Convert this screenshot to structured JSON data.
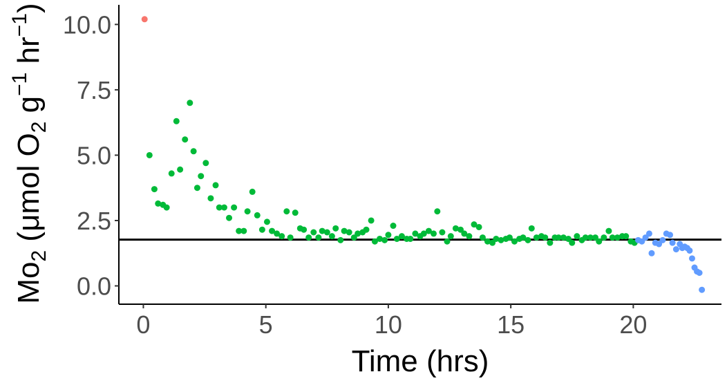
{
  "chart_data": {
    "type": "scatter",
    "xlabel": "Time (hrs)",
    "ylabel": {
      "parts": [
        "Mo",
        "2",
        " (μmol O",
        "2",
        " g",
        "−1",
        " hr",
        "−1",
        ")"
      ]
    },
    "xlim": [
      -1,
      23.6
    ],
    "ylim": [
      -0.7,
      10.75
    ],
    "x_ticks": [
      0,
      5,
      10,
      15,
      20
    ],
    "x_tick_labels": [
      "0",
      "5",
      "10",
      "15",
      "20"
    ],
    "y_ticks": [
      0,
      2.5,
      5,
      7.5,
      10
    ],
    "y_tick_labels": [
      "0.0",
      "2.5",
      "5.0",
      "7.5",
      "10.0"
    ],
    "grid": false,
    "legend": "none",
    "hline": {
      "y": 1.77,
      "color": "#000000"
    },
    "series": [
      {
        "color": "#F8766D",
        "points": [
          [
            0.05,
            10.2
          ]
        ]
      },
      {
        "color": "#00BA38",
        "points": [
          [
            0.25,
            5.0
          ],
          [
            0.45,
            3.7
          ],
          [
            0.6,
            3.15
          ],
          [
            0.8,
            3.1
          ],
          [
            0.95,
            3.0
          ],
          [
            1.15,
            4.3
          ],
          [
            1.35,
            6.3
          ],
          [
            1.5,
            4.45
          ],
          [
            1.7,
            5.6
          ],
          [
            1.9,
            7.0
          ],
          [
            2.05,
            5.15
          ],
          [
            2.2,
            3.75
          ],
          [
            2.35,
            4.2
          ],
          [
            2.55,
            4.7
          ],
          [
            2.75,
            3.35
          ],
          [
            2.95,
            3.85
          ],
          [
            3.1,
            3.0
          ],
          [
            3.3,
            3.0
          ],
          [
            3.5,
            2.6
          ],
          [
            3.7,
            3.0
          ],
          [
            3.9,
            2.1
          ],
          [
            4.1,
            2.1
          ],
          [
            4.25,
            2.85
          ],
          [
            4.45,
            3.6
          ],
          [
            4.65,
            2.7
          ],
          [
            4.85,
            2.15
          ],
          [
            5.05,
            2.45
          ],
          [
            5.25,
            2.1
          ],
          [
            5.45,
            2.0
          ],
          [
            5.65,
            1.9
          ],
          [
            5.85,
            2.85
          ],
          [
            6.0,
            1.85
          ],
          [
            6.2,
            2.8
          ],
          [
            6.4,
            2.2
          ],
          [
            6.55,
            2.15
          ],
          [
            6.75,
            1.85
          ],
          [
            6.95,
            2.05
          ],
          [
            7.15,
            1.85
          ],
          [
            7.3,
            2.1
          ],
          [
            7.5,
            2.05
          ],
          [
            7.7,
            1.9
          ],
          [
            7.85,
            2.2
          ],
          [
            8.05,
            1.75
          ],
          [
            8.2,
            2.1
          ],
          [
            8.4,
            2.05
          ],
          [
            8.6,
            1.85
          ],
          [
            8.75,
            2.0
          ],
          [
            8.95,
            2.05
          ],
          [
            9.1,
            2.15
          ],
          [
            9.3,
            2.5
          ],
          [
            9.45,
            1.7
          ],
          [
            9.65,
            1.8
          ],
          [
            9.85,
            1.75
          ],
          [
            10.0,
            1.95
          ],
          [
            10.2,
            2.3
          ],
          [
            10.35,
            1.8
          ],
          [
            10.55,
            1.9
          ],
          [
            10.75,
            1.8
          ],
          [
            10.9,
            1.8
          ],
          [
            11.1,
            2.0
          ],
          [
            11.3,
            1.9
          ],
          [
            11.45,
            2.0
          ],
          [
            11.65,
            2.1
          ],
          [
            11.85,
            2.0
          ],
          [
            12.0,
            2.85
          ],
          [
            12.2,
            2.05
          ],
          [
            12.4,
            1.7
          ],
          [
            12.55,
            1.9
          ],
          [
            12.75,
            2.2
          ],
          [
            12.95,
            2.15
          ],
          [
            13.1,
            2.0
          ],
          [
            13.3,
            1.9
          ],
          [
            13.5,
            2.35
          ],
          [
            13.7,
            2.25
          ],
          [
            13.85,
            1.85
          ],
          [
            14.05,
            1.7
          ],
          [
            14.25,
            1.65
          ],
          [
            14.4,
            1.8
          ],
          [
            14.6,
            1.75
          ],
          [
            14.8,
            1.8
          ],
          [
            14.95,
            1.85
          ],
          [
            15.15,
            1.7
          ],
          [
            15.35,
            1.8
          ],
          [
            15.5,
            1.85
          ],
          [
            15.7,
            1.75
          ],
          [
            15.85,
            2.2
          ],
          [
            16.05,
            1.85
          ],
          [
            16.25,
            1.9
          ],
          [
            16.4,
            1.85
          ],
          [
            16.6,
            1.65
          ],
          [
            16.8,
            1.85
          ],
          [
            16.95,
            1.85
          ],
          [
            17.15,
            1.85
          ],
          [
            17.35,
            1.8
          ],
          [
            17.5,
            1.65
          ],
          [
            17.7,
            1.9
          ],
          [
            17.9,
            1.75
          ],
          [
            18.05,
            1.85
          ],
          [
            18.25,
            1.85
          ],
          [
            18.45,
            1.85
          ],
          [
            18.6,
            1.7
          ],
          [
            18.8,
            1.85
          ],
          [
            19.0,
            2.1
          ],
          [
            19.15,
            1.85
          ],
          [
            19.35,
            1.85
          ],
          [
            19.55,
            1.9
          ],
          [
            19.7,
            1.9
          ],
          [
            19.9,
            1.7
          ],
          [
            20.05,
            1.65
          ]
        ]
      },
      {
        "color": "#619CFF",
        "points": [
          [
            20.2,
            1.75
          ],
          [
            20.35,
            1.7
          ],
          [
            20.5,
            1.85
          ],
          [
            20.65,
            2.0
          ],
          [
            20.75,
            1.25
          ],
          [
            20.9,
            1.65
          ],
          [
            21.05,
            1.6
          ],
          [
            21.2,
            1.75
          ],
          [
            21.35,
            2.0
          ],
          [
            21.5,
            1.95
          ],
          [
            21.6,
            1.65
          ],
          [
            21.75,
            1.4
          ],
          [
            21.9,
            1.6
          ],
          [
            22.0,
            1.45
          ],
          [
            22.1,
            1.5
          ],
          [
            22.2,
            1.45
          ],
          [
            22.3,
            1.35
          ],
          [
            22.4,
            1.05
          ],
          [
            22.5,
            0.7
          ],
          [
            22.6,
            0.55
          ],
          [
            22.7,
            0.5
          ],
          [
            22.8,
            -0.15
          ]
        ]
      }
    ]
  }
}
